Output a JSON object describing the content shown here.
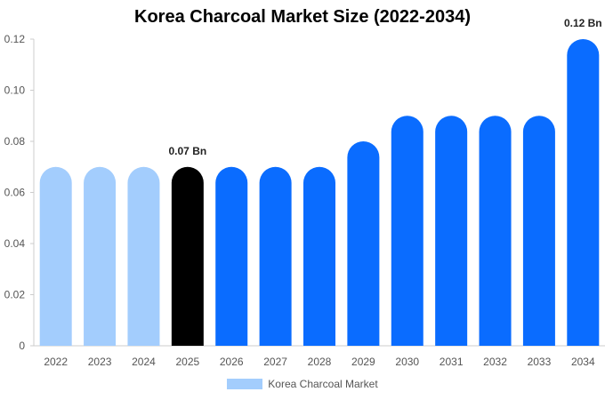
{
  "chart_data": {
    "type": "bar",
    "title": "Korea Charcoal Market Size (2022-2034)",
    "xlabel": "",
    "ylabel": "",
    "categories": [
      "2022",
      "2023",
      "2024",
      "2025",
      "2026",
      "2027",
      "2028",
      "2029",
      "2030",
      "2031",
      "2032",
      "2033",
      "2034"
    ],
    "series": [
      {
        "name": "Korea Charcoal Market",
        "values": [
          0.07,
          0.07,
          0.07,
          0.07,
          0.07,
          0.07,
          0.07,
          0.08,
          0.09,
          0.09,
          0.09,
          0.09,
          0.12
        ]
      }
    ],
    "bar_colors": [
      "#a3cdfd",
      "#a3cdfd",
      "#a3cdfd",
      "#000000",
      "#0a6cff",
      "#0a6cff",
      "#0a6cff",
      "#0a6cff",
      "#0a6cff",
      "#0a6cff",
      "#0a6cff",
      "#0a6cff",
      "#0a6cff"
    ],
    "ylim": [
      0,
      0.12
    ],
    "yticks": [
      "0",
      "0.02",
      "0.04",
      "0.06",
      "0.08",
      "0.10",
      "0.12"
    ],
    "data_labels": [
      {
        "category": "2025",
        "text": "0.07 Bn"
      },
      {
        "category": "2034",
        "text": "0.12 Bn"
      }
    ],
    "legend": {
      "label": "Korea Charcoal Market",
      "color": "#a3cdfd",
      "position": "bottom"
    },
    "grid": false
  }
}
